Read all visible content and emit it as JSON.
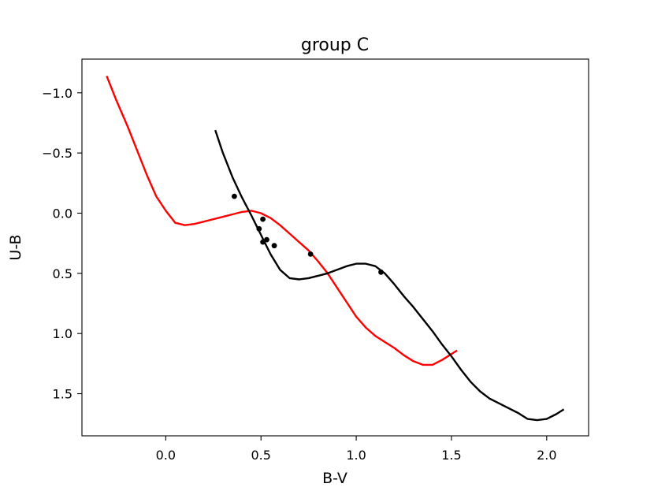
{
  "chart_data": {
    "type": "scatter",
    "title": "group C",
    "xlabel": "B-V",
    "ylabel": "U-B",
    "xlim": [
      -0.44,
      2.22
    ],
    "ylim": [
      1.85,
      -1.28
    ],
    "y_inverted": true,
    "grid": false,
    "x_ticks": [
      0.0,
      0.5,
      1.0,
      1.5,
      2.0
    ],
    "x_tick_labels": [
      "0.0",
      "0.5",
      "1.0",
      "1.5",
      "2.0"
    ],
    "y_ticks": [
      -1.0,
      -0.5,
      0.0,
      0.5,
      1.0,
      1.5
    ],
    "y_tick_labels": [
      "−1.0",
      "−0.5",
      "0.0",
      "0.5",
      "1.0",
      "1.5"
    ],
    "series": [
      {
        "kind": "line",
        "color": "#ff0000",
        "x": [
          -0.31,
          -0.26,
          -0.2,
          -0.15,
          -0.1,
          -0.05,
          0.0,
          0.05,
          0.1,
          0.15,
          0.2,
          0.25,
          0.3,
          0.35,
          0.4,
          0.45,
          0.5,
          0.55,
          0.6,
          0.65,
          0.7,
          0.75,
          0.8,
          0.85,
          0.9,
          0.95,
          1.0,
          1.05,
          1.1,
          1.15,
          1.2,
          1.25,
          1.3,
          1.35,
          1.4,
          1.45,
          1.5,
          1.53
        ],
        "y": [
          -1.14,
          -0.94,
          -0.72,
          -0.52,
          -0.32,
          -0.14,
          -0.02,
          0.08,
          0.1,
          0.09,
          0.07,
          0.05,
          0.03,
          0.01,
          -0.01,
          -0.02,
          0.0,
          0.04,
          0.1,
          0.17,
          0.24,
          0.31,
          0.4,
          0.5,
          0.62,
          0.74,
          0.86,
          0.95,
          1.02,
          1.07,
          1.12,
          1.18,
          1.23,
          1.26,
          1.26,
          1.22,
          1.17,
          1.14
        ]
      },
      {
        "kind": "line",
        "color": "#000000",
        "x": [
          0.26,
          0.3,
          0.35,
          0.4,
          0.45,
          0.5,
          0.55,
          0.6,
          0.65,
          0.7,
          0.75,
          0.8,
          0.85,
          0.9,
          0.95,
          1.0,
          1.05,
          1.1,
          1.15,
          1.2,
          1.25,
          1.3,
          1.35,
          1.4,
          1.45,
          1.5,
          1.55,
          1.6,
          1.65,
          1.7,
          1.75,
          1.8,
          1.85,
          1.9,
          1.95,
          2.0,
          2.05,
          2.09
        ],
        "y": [
          -0.69,
          -0.5,
          -0.3,
          -0.13,
          0.02,
          0.18,
          0.34,
          0.47,
          0.54,
          0.55,
          0.54,
          0.52,
          0.5,
          0.47,
          0.44,
          0.42,
          0.42,
          0.44,
          0.5,
          0.59,
          0.69,
          0.78,
          0.88,
          0.98,
          1.09,
          1.19,
          1.3,
          1.4,
          1.48,
          1.54,
          1.58,
          1.62,
          1.66,
          1.71,
          1.72,
          1.71,
          1.67,
          1.63
        ]
      },
      {
        "kind": "scatter",
        "color": "#000000",
        "x": [
          0.36,
          0.49,
          0.51,
          0.51,
          0.53,
          0.57,
          0.76,
          1.13
        ],
        "y": [
          -0.14,
          0.13,
          0.05,
          0.24,
          0.22,
          0.27,
          0.34,
          0.49
        ]
      }
    ]
  }
}
